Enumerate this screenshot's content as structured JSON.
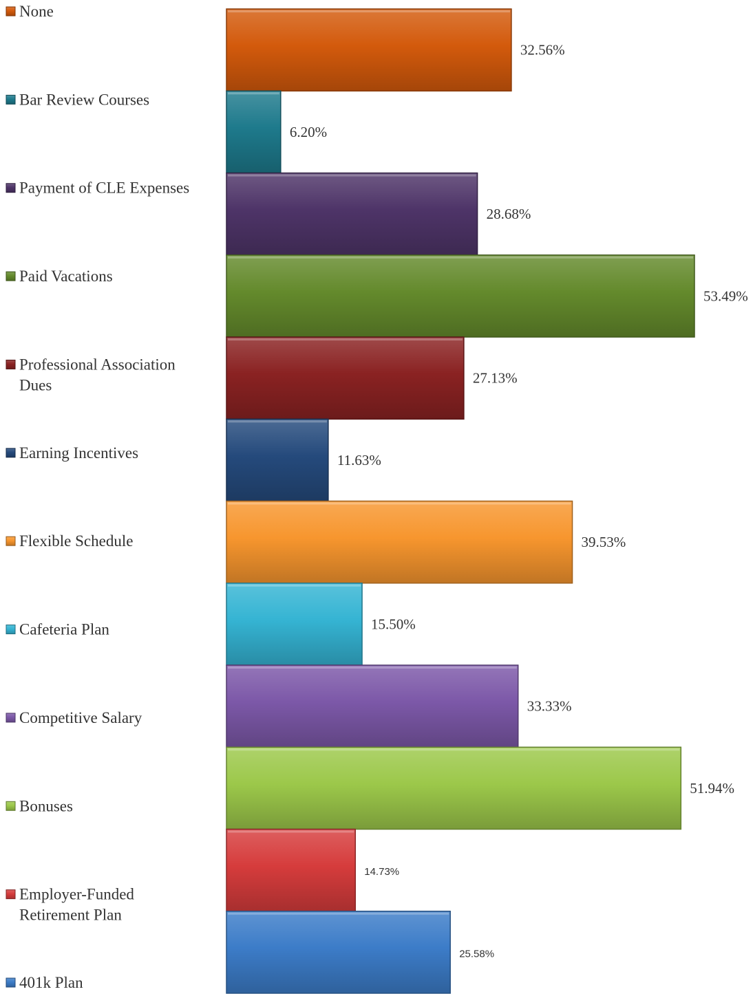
{
  "chart_data": {
    "type": "bar",
    "orientation": "horizontal",
    "title": "",
    "xlabel": "",
    "ylabel": "",
    "xlim": [
      0,
      55
    ],
    "grid": false,
    "legend_placement": "left",
    "series": [
      {
        "name": "None",
        "value": 32.56,
        "label": "32.56%",
        "color": "#D35A0C",
        "label_style": "serif"
      },
      {
        "name": "Bar Review Courses",
        "value": 6.2,
        "label": "6.20%",
        "color": "#1E7A8C",
        "label_style": "serif"
      },
      {
        "name": "Payment of CLE Expenses",
        "value": 28.68,
        "label": "28.68%",
        "color": "#4E3468",
        "label_style": "serif"
      },
      {
        "name": "Paid Vacations",
        "value": 53.49,
        "label": "53.49%",
        "color": "#648A2C",
        "label_style": "serif"
      },
      {
        "name": "Professional Association Dues",
        "legend_lines": [
          "Professional Association",
          "Dues"
        ],
        "value": 27.13,
        "label": "27.13%",
        "color": "#8A2222",
        "label_style": "serif"
      },
      {
        "name": "Earning Incentives",
        "value": 11.63,
        "label": "11.63%",
        "color": "#254A7C",
        "label_style": "serif"
      },
      {
        "name": "Flexible Schedule",
        "value": 39.53,
        "label": "39.53%",
        "color": "#F7962E",
        "label_style": "serif"
      },
      {
        "name": "Cafeteria Plan",
        "value": 15.5,
        "label": "15.50%",
        "color": "#35B4D3",
        "label_style": "serif"
      },
      {
        "name": "Competitive Salary",
        "value": 33.33,
        "label": "33.33%",
        "color": "#7C58A8",
        "label_style": "serif"
      },
      {
        "name": "Bonuses",
        "value": 51.94,
        "label": "51.94%",
        "color": "#9CC84A",
        "label_style": "serif"
      },
      {
        "name": "Employer-Funded Retirement Plan",
        "legend_lines": [
          "Employer-Funded",
          "Retirement Plan"
        ],
        "value": 14.73,
        "label": "14.73%",
        "color": "#D63C3C",
        "label_style": "sans"
      },
      {
        "name": "401k Plan",
        "value": 25.58,
        "label": "25.58%",
        "color": "#3C7CC8",
        "label_style": "sans"
      }
    ]
  }
}
